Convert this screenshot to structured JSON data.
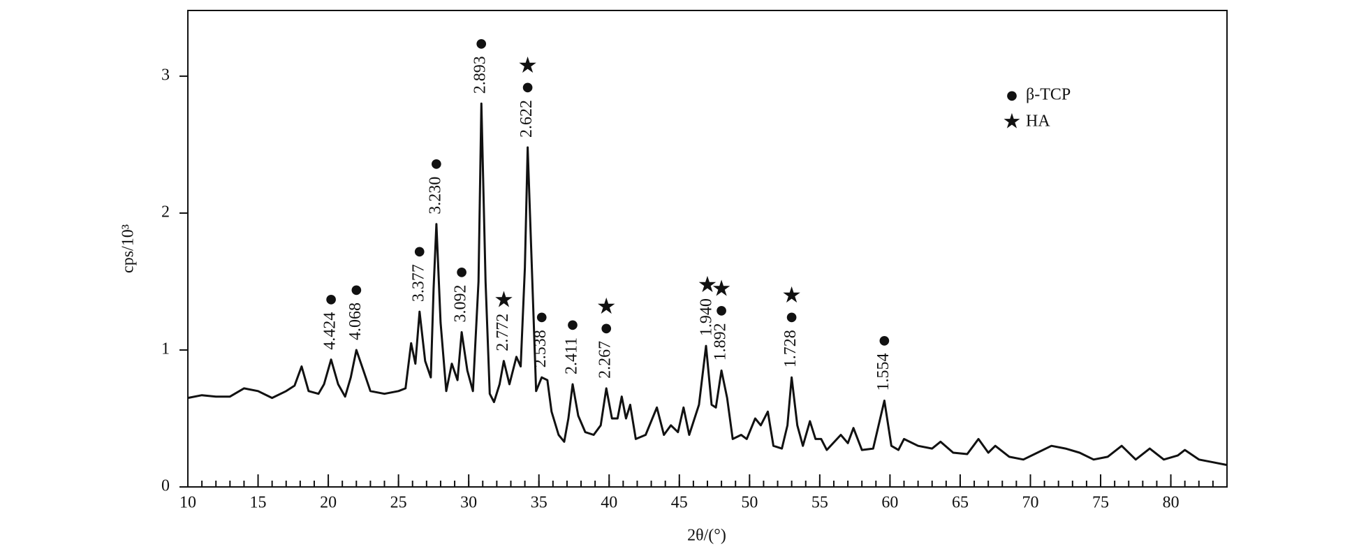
{
  "chart_data": {
    "type": "line",
    "x_label": "2θ/(°)",
    "y_label": "cps/10³",
    "xlim": [
      10,
      84
    ],
    "ylim": [
      0,
      3.48
    ],
    "xticks": [
      10,
      15,
      20,
      25,
      30,
      35,
      40,
      45,
      50,
      55,
      60,
      65,
      70,
      75,
      80
    ],
    "x_minor_step": 1,
    "yticks": [
      0,
      1,
      2,
      3
    ],
    "color": "#111111",
    "x": [
      10,
      11,
      12,
      13,
      14,
      15,
      16,
      17,
      17.6,
      18.1,
      18.6,
      19.3,
      19.7,
      20.2,
      20.7,
      21.2,
      21.6,
      22,
      22.5,
      23,
      24,
      25,
      25.5,
      25.9,
      26.2,
      26.5,
      26.9,
      27.3,
      27.5,
      27.7,
      28,
      28.4,
      28.8,
      29.2,
      29.5,
      29.9,
      30.3,
      30.7,
      30.9,
      31.2,
      31.5,
      31.8,
      32.2,
      32.5,
      32.9,
      33.4,
      33.7,
      34,
      34.2,
      34.5,
      34.8,
      35.2,
      35.6,
      35.9,
      36.4,
      36.8,
      37.1,
      37.4,
      37.8,
      38.3,
      38.9,
      39.4,
      39.8,
      40.2,
      40.6,
      40.9,
      41.2,
      41.5,
      41.9,
      42.6,
      43.4,
      43.9,
      44.4,
      44.9,
      45.3,
      45.7,
      46.4,
      46.9,
      47.3,
      47.6,
      48,
      48.4,
      48.8,
      49.4,
      49.8,
      50.4,
      50.8,
      51.3,
      51.7,
      52.3,
      52.7,
      53,
      53.4,
      53.8,
      54.3,
      54.7,
      55.1,
      55.5,
      56.5,
      57,
      57.4,
      58,
      58.8,
      59.6,
      60.1,
      60.6,
      61,
      62,
      63,
      63.6,
      64.5,
      65.5,
      66.3,
      67,
      67.5,
      68.5,
      69.5,
      70.5,
      71.5,
      72.5,
      73.5,
      74.5,
      75.5,
      76.5,
      77.5,
      78.5,
      79.5,
      80.5,
      81,
      82,
      83,
      84
    ],
    "values": [
      0.65,
      0.67,
      0.66,
      0.66,
      0.72,
      0.7,
      0.65,
      0.7,
      0.74,
      0.88,
      0.7,
      0.68,
      0.75,
      0.93,
      0.75,
      0.66,
      0.8,
      1.0,
      0.85,
      0.7,
      0.68,
      0.7,
      0.72,
      1.05,
      0.9,
      1.28,
      0.92,
      0.8,
      1.45,
      1.92,
      1.2,
      0.7,
      0.9,
      0.78,
      1.13,
      0.85,
      0.7,
      1.5,
      2.8,
      1.5,
      0.68,
      0.62,
      0.75,
      0.92,
      0.75,
      0.95,
      0.88,
      1.6,
      2.48,
      1.6,
      0.7,
      0.8,
      0.78,
      0.55,
      0.38,
      0.33,
      0.5,
      0.75,
      0.52,
      0.4,
      0.38,
      0.45,
      0.72,
      0.5,
      0.5,
      0.66,
      0.5,
      0.6,
      0.35,
      0.38,
      0.58,
      0.38,
      0.45,
      0.4,
      0.58,
      0.38,
      0.6,
      1.03,
      0.6,
      0.58,
      0.85,
      0.65,
      0.35,
      0.38,
      0.35,
      0.5,
      0.45,
      0.55,
      0.3,
      0.28,
      0.45,
      0.8,
      0.45,
      0.3,
      0.48,
      0.35,
      0.35,
      0.27,
      0.38,
      0.32,
      0.43,
      0.27,
      0.28,
      0.63,
      0.3,
      0.27,
      0.35,
      0.3,
      0.28,
      0.33,
      0.25,
      0.24,
      0.35,
      0.25,
      0.3,
      0.22,
      0.2,
      0.25,
      0.3,
      0.28,
      0.25,
      0.2,
      0.22,
      0.3,
      0.2,
      0.28,
      0.2,
      0.23,
      0.27,
      0.2,
      0.18,
      0.16
    ],
    "annotations": [
      {
        "x": 20.2,
        "label": "4.424",
        "marks": [
          "●"
        ]
      },
      {
        "x": 22.0,
        "label": "4.068",
        "marks": [
          "●"
        ]
      },
      {
        "x": 26.5,
        "label": "3.377",
        "marks": [
          "●"
        ]
      },
      {
        "x": 27.7,
        "label": "3.230",
        "marks": [
          "●"
        ]
      },
      {
        "x": 29.5,
        "label": "3.092",
        "marks": [
          "●"
        ]
      },
      {
        "x": 30.9,
        "label": "2.893",
        "marks": [
          "●"
        ]
      },
      {
        "x": 32.5,
        "label": "2.772",
        "marks": [
          "★"
        ]
      },
      {
        "x": 34.2,
        "label": "2.622",
        "marks": [
          "★",
          "●"
        ]
      },
      {
        "x": 35.2,
        "label": "2.538",
        "marks": [
          "●"
        ]
      },
      {
        "x": 37.4,
        "label": "2.411",
        "marks": [
          "●"
        ]
      },
      {
        "x": 39.8,
        "label": "2.267",
        "marks": [
          "★",
          "●"
        ]
      },
      {
        "x": 47.0,
        "label": "1.940",
        "marks": [
          "★"
        ]
      },
      {
        "x": 48.0,
        "label": "1.892",
        "marks": [
          "★",
          "●"
        ]
      },
      {
        "x": 53.0,
        "label": "1.728",
        "marks": [
          "★",
          "●"
        ]
      },
      {
        "x": 59.6,
        "label": "1.554",
        "marks": [
          "●"
        ]
      }
    ],
    "legend": {
      "position": "upper right",
      "entries": [
        {
          "symbol": "●",
          "label": "β-TCP"
        },
        {
          "symbol": "★",
          "label": "HA"
        }
      ]
    }
  }
}
